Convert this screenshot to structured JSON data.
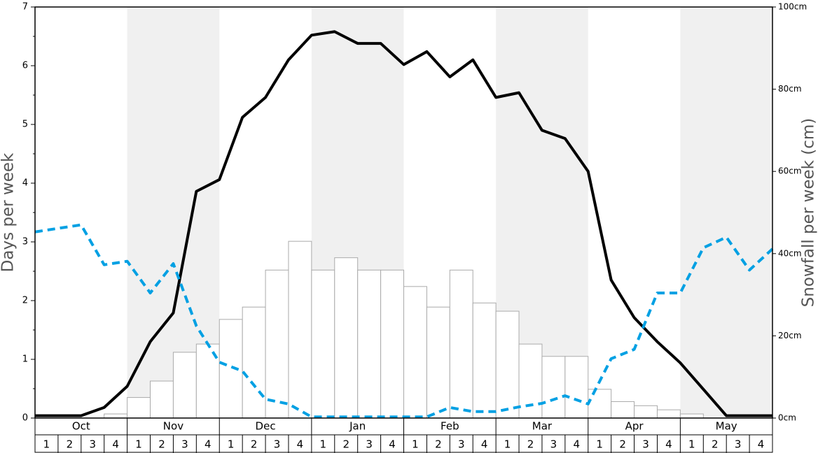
{
  "chart_data": {
    "type": "bar",
    "ylabel": "Days per week",
    "y2label": "Snowfall per week (cm)",
    "ylim": [
      0,
      7
    ],
    "yticks": [
      0,
      1,
      2,
      3,
      4,
      5,
      6,
      7
    ],
    "y2lim": [
      0,
      100
    ],
    "y2ticks": [
      {
        "value": 0,
        "label": "0cm"
      },
      {
        "value": 20,
        "label": "20cm"
      },
      {
        "value": 40,
        "label": "40cm"
      },
      {
        "value": 60,
        "label": "60cm"
      },
      {
        "value": 80,
        "label": "80cm"
      },
      {
        "value": 100,
        "label": "100cm"
      }
    ],
    "months": [
      "Oct",
      "Nov",
      "Dec",
      "Jan",
      "Feb",
      "Mar",
      "Apr",
      "May"
    ],
    "categories": [
      "1",
      "2",
      "3",
      "4",
      "1",
      "2",
      "3",
      "4",
      "1",
      "2",
      "3",
      "4",
      "1",
      "2",
      "3",
      "4",
      "1",
      "2",
      "3",
      "4",
      "1",
      "2",
      "3",
      "4",
      "1",
      "2",
      "3",
      "4",
      "1",
      "2",
      "3",
      "4"
    ],
    "xlim": [
      0,
      32
    ],
    "series": [
      {
        "type": "bar",
        "color": "#ffffff",
        "axis": "y2",
        "values": [
          0,
          0,
          0,
          1,
          5,
          9,
          16,
          18,
          24,
          27,
          36,
          43,
          36,
          39,
          36,
          36,
          32,
          27,
          36,
          28,
          26,
          18,
          15,
          15,
          7,
          4,
          3,
          2,
          1,
          0,
          0,
          0
        ]
      },
      {
        "type": "line",
        "color": "#000000",
        "x": [
          0,
          1,
          2,
          3,
          4,
          5,
          6,
          7,
          8,
          9,
          10,
          11,
          12,
          13,
          14,
          15,
          16,
          17,
          18,
          19,
          20,
          21,
          22,
          23,
          24,
          25,
          26,
          27,
          28,
          29,
          30,
          31,
          32
        ],
        "values": [
          0.04,
          0.04,
          0.04,
          0.18,
          0.54,
          1.3,
          1.79,
          3.86,
          4.06,
          5.12,
          5.46,
          6.1,
          6.52,
          6.58,
          6.38,
          6.38,
          6.02,
          6.24,
          5.81,
          6.1,
          5.46,
          5.54,
          4.9,
          4.76,
          4.2,
          2.35,
          1.71,
          1.3,
          0.94,
          0.49,
          0.04,
          0.04,
          0.04
        ]
      },
      {
        "type": "line",
        "color": "#00a0e3",
        "dashed": true,
        "x": [
          0,
          1,
          2,
          3,
          4,
          5,
          6,
          7,
          8,
          9,
          10,
          11,
          12,
          13,
          14,
          15,
          16,
          17,
          18,
          19,
          20,
          21,
          22,
          23,
          24,
          25,
          26,
          27,
          28,
          29,
          30,
          31,
          32
        ],
        "values": [
          3.17,
          3.23,
          3.29,
          2.61,
          2.67,
          2.13,
          2.63,
          1.57,
          0.95,
          0.8,
          0.32,
          0.24,
          0.02,
          0.02,
          0.02,
          0.02,
          0.02,
          0.02,
          0.18,
          0.11,
          0.11,
          0.19,
          0.25,
          0.38,
          0.24,
          1.01,
          1.17,
          2.13,
          2.13,
          2.9,
          3.08,
          2.52,
          2.88
        ]
      }
    ]
  }
}
